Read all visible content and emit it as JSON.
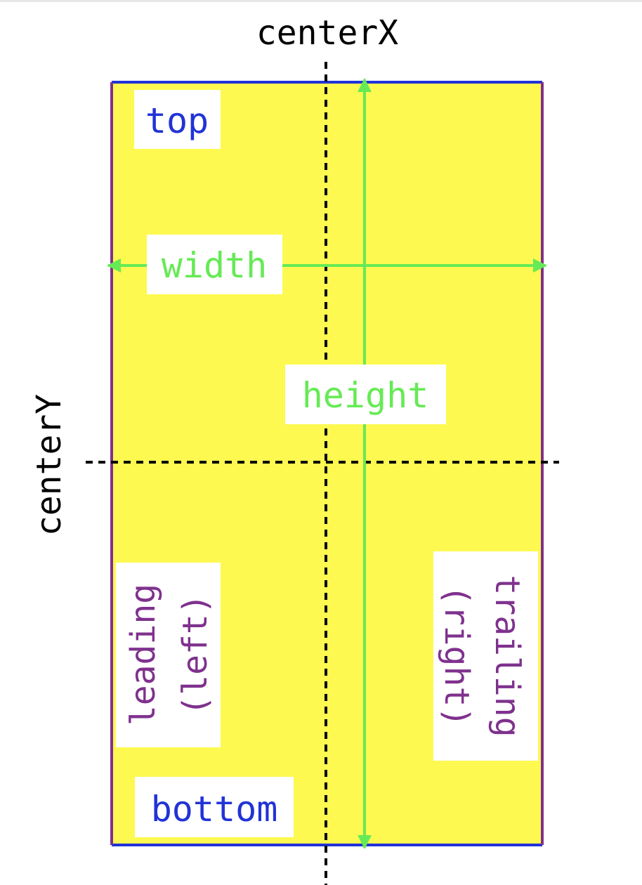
{
  "labels": {
    "center_x": "centerX",
    "center_y": "centerY",
    "top": "top",
    "bottom": "bottom",
    "width": "width",
    "height": "height",
    "leading_line1": "leading",
    "leading_line2": "(left)",
    "trailing_line1": "trailing",
    "trailing_line2": "(right)"
  },
  "colors": {
    "fill": "#fdf950",
    "horizontal_edges": "#2133d6",
    "vertical_edges": "#7f318d",
    "dimension_arrows": "#66ea55",
    "center_lines": "#000000",
    "label_bg": "#ffffff"
  }
}
